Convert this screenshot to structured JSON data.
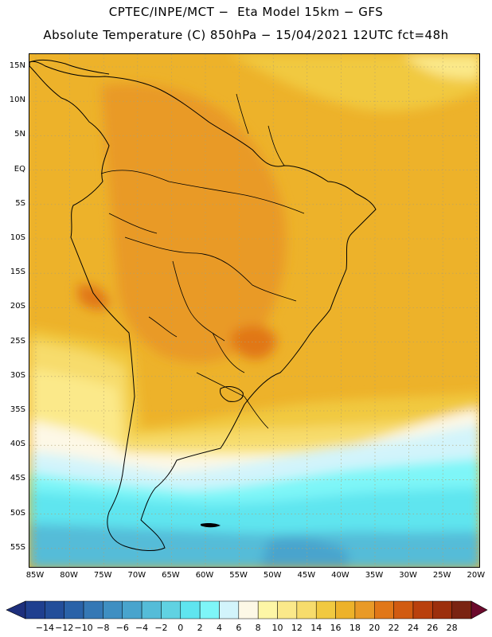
{
  "title_line1": "CPTEC/INPE/MCT −  Eta Model 15km − GFS",
  "title_line2": "Absolute Temperature (C) 850hPa − 15/04/2021 12UTC fct=48h",
  "lat_labels": [
    "15N",
    "10N",
    "5N",
    "EQ",
    "5S",
    "10S",
    "15S",
    "20S",
    "25S",
    "30S",
    "35S",
    "40S",
    "45S",
    "50S",
    "55S"
  ],
  "lon_labels": [
    "85W",
    "80W",
    "75W",
    "70W",
    "65W",
    "60W",
    "55W",
    "50W",
    "45W",
    "40W",
    "35W",
    "30W",
    "25W",
    "20W"
  ],
  "colorbar": {
    "labels": [
      "−14",
      "−12",
      "−10",
      "−8",
      "−6",
      "−4",
      "−2",
      "0",
      "2",
      "4",
      "6",
      "8",
      "10",
      "12",
      "14",
      "16",
      "18",
      "20",
      "22",
      "24",
      "26",
      "28"
    ],
    "colors": [
      "#1f3f8f",
      "#234e9a",
      "#2a62a8",
      "#3578b5",
      "#3f8fc2",
      "#49a4cd",
      "#55bcd8",
      "#60d2e2",
      "#5fe5ef",
      "#7ef6f8",
      "#d2f4fb",
      "#fdf8e6",
      "#fdf6a6",
      "#fbe98a",
      "#f7dc6c",
      "#f1c940",
      "#edb22a",
      "#e99a27",
      "#e17718",
      "#d15b11",
      "#b9400d",
      "#9c2f0c",
      "#7a2412"
    ],
    "under_color": "#1d2f7c",
    "over_color": "#6b0a2c"
  }
}
